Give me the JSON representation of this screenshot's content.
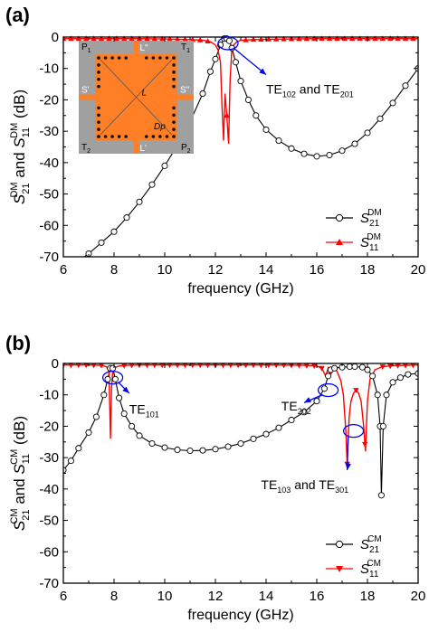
{
  "colors": {
    "s21": "#000000",
    "s11": "#ff0000",
    "annotation": "#0000ff",
    "inset_board": "#ff7f27",
    "inset_frame": "#a0a0a0"
  },
  "chart_data": [
    {
      "panel_label": "(a)",
      "type": "line",
      "xlabel": "frequency (GHz)",
      "xlim": [
        6,
        20
      ],
      "ylim": [
        -70,
        0
      ],
      "xticks": [
        6,
        8,
        10,
        12,
        14,
        16,
        18,
        20
      ],
      "yticks": [
        0,
        -10,
        -20,
        -30,
        -40,
        -50,
        -60,
        -70
      ],
      "ylabel": {
        "a_base": "S",
        "a_sub": "21",
        "a_sup": "DM",
        "mid": " and ",
        "b_base": "S",
        "b_sub": "11",
        "b_sup": "DM",
        "unit": " (dB)"
      },
      "legend": [
        {
          "base": "S",
          "sub": "21",
          "sup": "DM",
          "marker": "circle"
        },
        {
          "base": "S",
          "sub": "11",
          "sup": "DM",
          "marker": "triangle-up"
        }
      ],
      "legend_position": "bottom-right",
      "series": [
        {
          "key": "s21",
          "marker": "circle",
          "x": [
            6.0,
            6.5,
            7.0,
            7.5,
            8.0,
            8.5,
            9.0,
            9.5,
            10.0,
            10.5,
            11.0,
            11.5,
            11.8,
            12.0,
            12.2,
            12.35,
            12.45,
            12.55,
            12.65,
            12.8,
            13.0,
            13.3,
            13.6,
            14.0,
            14.5,
            15.0,
            15.5,
            16.0,
            16.5,
            17.0,
            17.5,
            18.0,
            18.5,
            19.0,
            19.5,
            20.0
          ],
          "y": [
            -75,
            -72,
            -69,
            -65.5,
            -62,
            -57.5,
            -52.5,
            -47,
            -41,
            -34.5,
            -27,
            -18,
            -11,
            -7,
            -2.5,
            -0.5,
            -0.5,
            -1.2,
            -3.5,
            -8,
            -14,
            -20,
            -25,
            -29.5,
            -33,
            -35.5,
            -37.2,
            -38,
            -37.6,
            -36.2,
            -34,
            -30.5,
            -26,
            -21,
            -15.5,
            -10
          ]
        },
        {
          "key": "s11",
          "marker": "triangle-up",
          "x": [
            6.0,
            7.0,
            8.0,
            9.0,
            10.0,
            11.0,
            11.5,
            11.8,
            12.0,
            12.1,
            12.2,
            12.26,
            12.32,
            12.38,
            12.45,
            12.52,
            12.58,
            12.64,
            12.72,
            12.85,
            13.0,
            13.5,
            14.0,
            15.0,
            16.0,
            17.0,
            18.0,
            19.0,
            20.0
          ],
          "y": [
            -0.5,
            -0.5,
            -0.5,
            -0.5,
            -0.6,
            -0.8,
            -1.0,
            -1.5,
            -2.5,
            -4,
            -8,
            -22,
            -33,
            -18,
            -25,
            -34,
            -14,
            -5,
            -2.5,
            -1.5,
            -1.0,
            -0.8,
            -0.7,
            -0.6,
            -0.5,
            -0.5,
            -0.5,
            -0.5,
            -0.5
          ],
          "marker_x": [
            6.0,
            6.3,
            6.6,
            6.9,
            7.2,
            7.5,
            7.8,
            8.1,
            8.4,
            8.7,
            9.0,
            9.3,
            9.6,
            9.9,
            10.2,
            10.5,
            10.8,
            11.1,
            11.4,
            11.7,
            12.45,
            13.2,
            13.5,
            13.8,
            14.1,
            14.4,
            14.7,
            15.0,
            15.3,
            15.6,
            15.9,
            16.2,
            16.5,
            16.8,
            17.1,
            17.4,
            17.7,
            18.0,
            18.3,
            18.6,
            18.9,
            19.2,
            19.5,
            19.8
          ]
        }
      ],
      "annotations": [
        {
          "base": "TE",
          "sub1": "102",
          "mid": " and TE",
          "sub2": "201",
          "ellipse": [
            12.5,
            -2
          ],
          "arrow_to": [
            14.0,
            -12
          ],
          "text_at": [
            14.0,
            -18
          ]
        }
      ],
      "inset": {
        "corner_labels": {
          "p1": "P",
          "p1_sub": "1",
          "t1": "T",
          "t1_sub": "1",
          "t2": "T",
          "t2_sub": "2",
          "p2": "P",
          "p2_sub": "2"
        },
        "port_labels": {
          "l_top": "L\"",
          "l_bottom": "L'",
          "s_left": "S'",
          "s_right": "S\""
        },
        "center_label": "L",
        "dp_label": "Dp"
      }
    },
    {
      "panel_label": "(b)",
      "type": "line",
      "xlabel": "frequency (GHz)",
      "xlim": [
        6,
        20
      ],
      "ylim": [
        -70,
        0
      ],
      "xticks": [
        6,
        8,
        10,
        12,
        14,
        16,
        18,
        20
      ],
      "yticks": [
        0,
        -10,
        -20,
        -30,
        -40,
        -50,
        -60,
        -70
      ],
      "ylabel": {
        "a_base": "S",
        "a_sub": "21",
        "a_sup": "CM",
        "mid": " and ",
        "b_base": "S",
        "b_sub": "11",
        "b_sup": "CM",
        "unit": " (dB)"
      },
      "legend": [
        {
          "base": "S",
          "sub": "21",
          "sup": "CM",
          "marker": "circle"
        },
        {
          "base": "S",
          "sub": "11",
          "sup": "CM",
          "marker": "triangle-down"
        }
      ],
      "legend_position": "bottom-right",
      "series": [
        {
          "key": "s21",
          "marker": "circle",
          "x": [
            6.0,
            6.3,
            6.6,
            7.0,
            7.3,
            7.6,
            7.75,
            7.85,
            7.95,
            8.05,
            8.2,
            8.4,
            8.7,
            9.0,
            9.5,
            10.0,
            10.5,
            11.0,
            11.5,
            12.0,
            12.5,
            13.0,
            13.5,
            14.0,
            14.5,
            15.0,
            15.5,
            16.0,
            16.3,
            16.45,
            16.55,
            16.7,
            17.0,
            17.3,
            17.5,
            17.8,
            18.0,
            18.2,
            18.4,
            18.5,
            18.55,
            18.62,
            18.75,
            19.0,
            19.3,
            19.6,
            20.0
          ],
          "y": [
            -34,
            -31,
            -27,
            -22,
            -17,
            -10,
            -5,
            -1.5,
            -1.5,
            -5,
            -11,
            -16,
            -20,
            -23,
            -25.5,
            -26.8,
            -27.5,
            -27.8,
            -27.7,
            -27.3,
            -26.5,
            -25.5,
            -24,
            -22.5,
            -20.5,
            -18,
            -15.5,
            -12,
            -8,
            -4,
            -2,
            -1.5,
            -1.2,
            -1.0,
            -1.0,
            -1.2,
            -2,
            -4,
            -10,
            -20,
            -42,
            -20,
            -10,
            -6,
            -4.5,
            -3.5,
            -3.2
          ]
        },
        {
          "key": "s11",
          "marker": "triangle-down",
          "x": [
            6.0,
            7.0,
            7.5,
            7.7,
            7.8,
            7.86,
            7.9,
            7.95,
            8.05,
            8.2,
            8.5,
            9.0,
            10.0,
            12.0,
            14.0,
            15.5,
            16.0,
            16.2,
            16.35,
            16.45,
            16.55,
            16.65,
            16.8,
            16.95,
            17.05,
            17.15,
            17.2,
            17.28,
            17.35,
            17.45,
            17.55,
            17.65,
            17.75,
            17.85,
            17.92,
            18.0,
            18.1,
            18.3,
            18.6,
            19.0,
            20.0
          ],
          "y": [
            -0.5,
            -0.5,
            -0.6,
            -1.0,
            -2.5,
            -24,
            -8,
            -2.5,
            -1.2,
            -0.8,
            -0.6,
            -0.5,
            -0.5,
            -0.5,
            -0.5,
            -0.6,
            -0.8,
            -1.5,
            -4,
            -1.5,
            -3.5,
            -1.5,
            -2.5,
            -5.5,
            -10,
            -22,
            -32,
            -17,
            -12,
            -9.5,
            -8.5,
            -9.5,
            -12,
            -20,
            -28,
            -12,
            -5,
            -2,
            -1,
            -0.7,
            -0.5
          ],
          "marker_x": [
            6.0,
            6.3,
            6.6,
            6.9,
            7.2,
            7.5,
            8.4,
            8.7,
            9.0,
            9.3,
            9.6,
            9.9,
            10.2,
            10.5,
            10.8,
            11.1,
            11.4,
            11.7,
            12.0,
            12.3,
            12.6,
            12.9,
            13.2,
            13.5,
            13.8,
            14.1,
            14.4,
            14.7,
            15.0,
            15.3,
            15.6,
            15.9,
            16.2,
            17.2,
            17.55,
            17.9,
            18.6,
            18.9,
            19.2,
            19.5,
            19.8
          ]
        }
      ],
      "annotations": [
        {
          "base": "TE",
          "sub1": "101",
          "ellipse": [
            7.95,
            -4.5
          ],
          "arrow_to": [
            8.6,
            -9.5
          ],
          "text_at": [
            8.6,
            -16
          ]
        },
        {
          "base": "TE",
          "sub1": "202",
          "ellipse": [
            16.45,
            -8.5
          ],
          "arrow_to": [
            15.5,
            -12.5
          ],
          "text_at": [
            14.6,
            -15
          ]
        },
        {
          "base": "TE",
          "sub1": "103",
          "mid": " and TE",
          "sub2": "301",
          "ellipse": [
            17.45,
            -21.5
          ],
          "arrow_to": [
            17.2,
            -34
          ],
          "text_at": [
            13.8,
            -40
          ]
        }
      ]
    }
  ]
}
